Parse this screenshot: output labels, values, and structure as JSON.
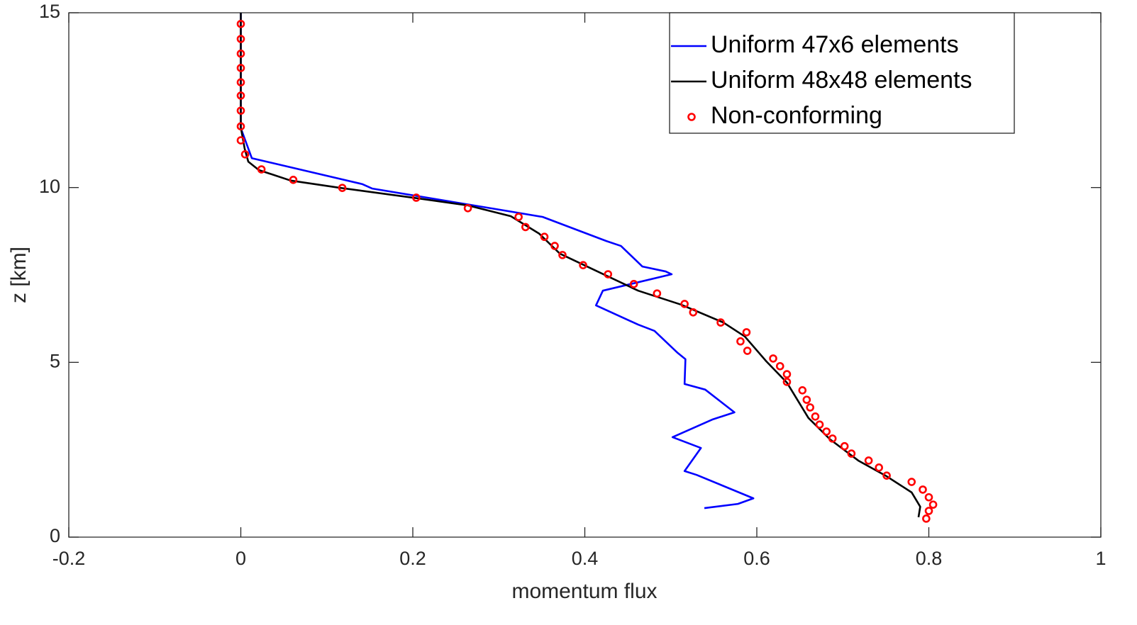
{
  "chart_data": {
    "type": "line",
    "x_label": "momentum flux",
    "y_label": "z [km]",
    "xlim": [
      -0.2,
      1
    ],
    "ylim": [
      0,
      15
    ],
    "xticks": [
      -0.2,
      0,
      0.2,
      0.4,
      0.6,
      0.8,
      1
    ],
    "yticks": [
      0,
      5,
      10,
      15
    ],
    "box": true,
    "legend": "northeast",
    "series": [
      {
        "name": "Uniform 47x6 elements",
        "color": "#0000ff",
        "style": "line",
        "x": [
          0,
          0,
          0.0128,
          0.141,
          0.153,
          0.305,
          0.351,
          0.425,
          0.442,
          0.467,
          0.494,
          0.501,
          0.421,
          0.413,
          0.462,
          0.481,
          0.508,
          0.517,
          0.516,
          0.54,
          0.574,
          0.549,
          0.502,
          0.535,
          0.516,
          0.53,
          0.596,
          0.578,
          0.539
        ],
        "values": [
          15,
          11.7,
          10.84,
          10.1,
          9.97,
          9.35,
          9.16,
          8.47,
          8.33,
          7.74,
          7.6,
          7.52,
          7.05,
          6.63,
          6.08,
          5.9,
          5.27,
          5.09,
          4.38,
          4.22,
          3.57,
          3.37,
          2.86,
          2.55,
          1.89,
          1.78,
          1.11,
          0.95,
          0.83
        ]
      },
      {
        "name": "Uniform 48x48 elements",
        "color": "#000000",
        "style": "line",
        "x": [
          0,
          0,
          0.0045,
          0.0087,
          0.021,
          0.058,
          0.116,
          0.206,
          0.264,
          0.314,
          0.347,
          0.371,
          0.413,
          0.462,
          0.512,
          0.561,
          0.586,
          0.611,
          0.635,
          0.66,
          0.685,
          0.718,
          0.751,
          0.78,
          0.79,
          0.788
        ],
        "values": [
          15,
          11.72,
          11.11,
          10.74,
          10.5,
          10.2,
          9.99,
          9.69,
          9.49,
          9.18,
          8.68,
          8.11,
          7.62,
          7.05,
          6.65,
          6.14,
          5.74,
          5.03,
          4.42,
          3.41,
          2.8,
          2.19,
          1.74,
          1.28,
          0.87,
          0.57
        ]
      },
      {
        "name": "Non-conforming",
        "color": "#ff0000",
        "style": "markers",
        "x": [
          0,
          0,
          0,
          0,
          0,
          0,
          0,
          0,
          0,
          0.005,
          0.024,
          0.061,
          0.118,
          0.204,
          0.264,
          0.323,
          0.331,
          0.353,
          0.365,
          0.374,
          0.398,
          0.427,
          0.457,
          0.484,
          0.516,
          0.526,
          0.558,
          0.588,
          0.581,
          0.589,
          0.619,
          0.627,
          0.635,
          0.635,
          0.653,
          0.658,
          0.662,
          0.668,
          0.673,
          0.681,
          0.688,
          0.702,
          0.71,
          0.73,
          0.742,
          0.751,
          0.78,
          0.793,
          0.8,
          0.805,
          0.8,
          0.797
        ],
        "values": [
          14.68,
          14.25,
          13.83,
          13.42,
          13.01,
          12.63,
          12.2,
          11.75,
          11.35,
          10.95,
          10.52,
          10.22,
          9.99,
          9.71,
          9.41,
          9.16,
          8.87,
          8.59,
          8.33,
          8.07,
          7.78,
          7.52,
          7.24,
          6.97,
          6.67,
          6.43,
          6.14,
          5.86,
          5.6,
          5.33,
          5.11,
          4.89,
          4.66,
          4.44,
          4.2,
          3.93,
          3.71,
          3.45,
          3.22,
          3.02,
          2.82,
          2.6,
          2.39,
          2.19,
          1.99,
          1.76,
          1.58,
          1.36,
          1.14,
          0.93,
          0.75,
          0.53
        ]
      }
    ]
  }
}
